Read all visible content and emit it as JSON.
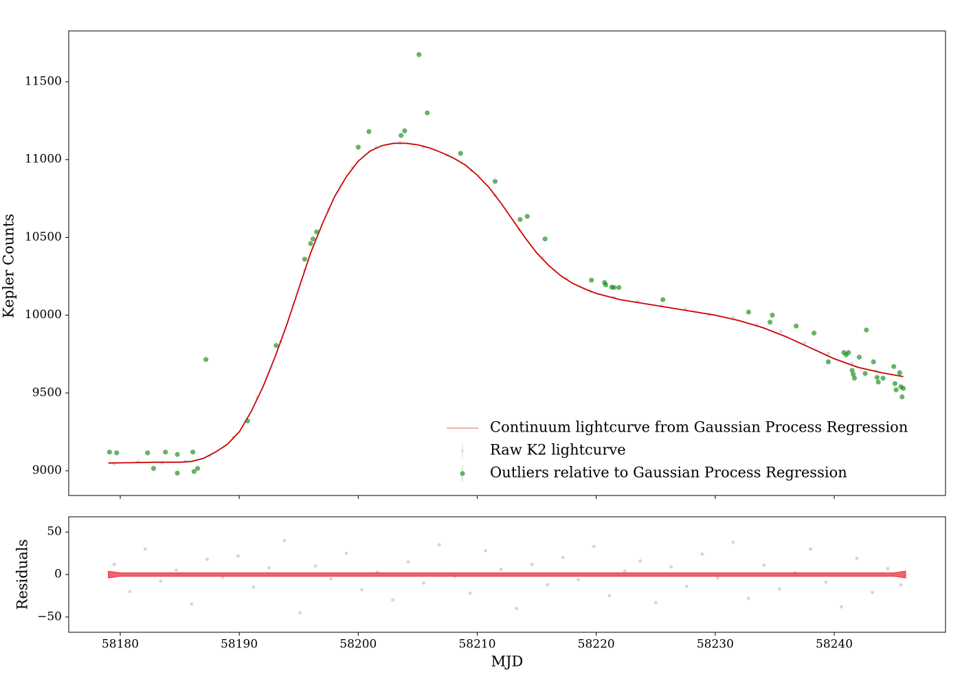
{
  "chart_data": [
    {
      "type": "composite",
      "ylabel": "Kepler Counts",
      "xlim": [
        58175.67,
        58249.35
      ],
      "ylim": [
        8841,
        11827
      ],
      "xticks": [
        58180,
        58190,
        58200,
        58210,
        58220,
        58230,
        58240
      ],
      "yticks": [
        9000,
        9500,
        10000,
        10500,
        11000,
        11500
      ],
      "legend": "lower right",
      "series": [
        {
          "name": "Continuum lightcurve from Gaussian Process Regression",
          "kind": "line",
          "color": "#cc0000",
          "x": [
            58179,
            58181,
            58183,
            58185,
            58186,
            58187,
            58188,
            58189,
            58190,
            58191,
            58192,
            58193,
            58194,
            58195,
            58196,
            58197,
            58198,
            58199,
            58200,
            58201,
            58202,
            58203,
            58204,
            58205,
            58206,
            58207,
            58208,
            58209,
            58210,
            58211,
            58212,
            58213,
            58214,
            58215,
            58216,
            58217,
            58218,
            58219,
            58220,
            58221,
            58222,
            58224,
            58226,
            58228,
            58230,
            58232,
            58234,
            58236,
            58238,
            58240,
            58242,
            58244,
            58245.8
          ],
          "values": [
            9050,
            9052,
            9055,
            9055,
            9060,
            9080,
            9120,
            9170,
            9250,
            9380,
            9540,
            9730,
            9940,
            10170,
            10400,
            10590,
            10760,
            10890,
            10990,
            11055,
            11090,
            11105,
            11105,
            11095,
            11075,
            11045,
            11010,
            10965,
            10900,
            10820,
            10720,
            10610,
            10500,
            10400,
            10320,
            10255,
            10205,
            10170,
            10140,
            10120,
            10100,
            10075,
            10050,
            10025,
            10000,
            9965,
            9920,
            9860,
            9790,
            9720,
            9665,
            9630,
            9605
          ]
        },
        {
          "name": "Raw K2 lightcurve",
          "kind": "points",
          "color": "#999999",
          "x": [
            58179.5,
            58181.5,
            58183.5,
            58185.5,
            58187.5,
            58189.5,
            58191.5,
            58193.5,
            58195.5,
            58197.5,
            58199.5,
            58201.5,
            58203.5,
            58205.5,
            58207.5,
            58209.5,
            58211.5,
            58213.5,
            58215.5,
            58217.5,
            58219.5,
            58221.5,
            58223.5,
            58225.5,
            58227.5,
            58229.5,
            58231.5,
            58233.5,
            58235.5,
            58237.5,
            58239.5,
            58241.5,
            58243.5,
            58245.5
          ],
          "values": [
            9045,
            9060,
            9050,
            9062,
            9095,
            9215,
            9470,
            9830,
            10290,
            10680,
            10950,
            11080,
            11110,
            11080,
            11030,
            10930,
            10770,
            10550,
            10370,
            10235,
            10150,
            10115,
            10090,
            10060,
            10040,
            10005,
            9985,
            9940,
            9895,
            9820,
            9755,
            9690,
            9640,
            9615
          ]
        },
        {
          "name": "Outliers relative to Gaussian Process Regression",
          "kind": "points",
          "color": "#008000",
          "x": [
            58179.1,
            58179.7,
            58182.3,
            58182.8,
            58183.8,
            58184.8,
            58184.8,
            58186.1,
            58186.2,
            58186.5,
            58187.2,
            58190.7,
            58193.1,
            58195.5,
            58196.0,
            58196.2,
            58196.5,
            58200.0,
            58200.9,
            58203.6,
            58203.9,
            58205.1,
            58205.8,
            58208.6,
            58211.5,
            58213.6,
            58214.2,
            58215.7,
            58219.6,
            58220.7,
            58220.8,
            58221.3,
            58221.5,
            58221.9,
            58225.6,
            58232.8,
            58234.6,
            58234.8,
            58236.8,
            58238.3,
            58239.5,
            58240.8,
            58241.2,
            58241.0,
            58241.5,
            58241.6,
            58241.7,
            58242.1,
            58242.6,
            58242.7,
            58243.3,
            58243.6,
            58243.7,
            58244.1,
            58245.0,
            58245.1,
            58245.2,
            58245.5,
            58245.6,
            58245.7,
            58245.8
          ],
          "values": [
            9120,
            9115,
            9115,
            9015,
            9120,
            8985,
            9105,
            9120,
            8995,
            9015,
            9715,
            9320,
            9805,
            10360,
            10460,
            10490,
            10535,
            11080,
            11180,
            11155,
            11185,
            11675,
            11300,
            11040,
            10860,
            10615,
            10635,
            10490,
            10225,
            10210,
            10195,
            10180,
            10178,
            10178,
            10100,
            10020,
            9955,
            10000,
            9930,
            9885,
            9700,
            9760,
            9760,
            9745,
            9645,
            9620,
            9595,
            9730,
            9625,
            9905,
            9700,
            9600,
            9570,
            9595,
            9670,
            9560,
            9520,
            9630,
            9540,
            9475,
            9530
          ]
        }
      ]
    },
    {
      "type": "scatter",
      "ylabel": "Residuals",
      "xlabel": "MJD",
      "xlim": [
        58175.67,
        58249.35
      ],
      "ylim": [
        -68,
        68
      ],
      "xticks": [
        58180,
        58190,
        58200,
        58210,
        58220,
        58230,
        58240
      ],
      "yticks": [
        {
          "value": -50,
          "label": "−50"
        },
        0,
        50
      ],
      "color": "#999999",
      "x": [
        58179.5,
        58180.8,
        58182.1,
        58183.4,
        58184.7,
        58186,
        58187.3,
        58188.6,
        58189.9,
        58191.2,
        58192.5,
        58193.8,
        58195.1,
        58196.4,
        58197.7,
        58199,
        58200.3,
        58201.6,
        58202.9,
        58204.2,
        58205.5,
        58206.8,
        58208.1,
        58209.4,
        58210.7,
        58212,
        58213.3,
        58214.6,
        58215.9,
        58217.2,
        58218.5,
        58219.8,
        58221.1,
        58222.4,
        58223.7,
        58225,
        58226.3,
        58227.6,
        58228.9,
        58230.2,
        58231.5,
        58232.8,
        58234.1,
        58235.4,
        58236.7,
        58238,
        58239.3,
        58240.6,
        58241.9,
        58243.2,
        58244.5,
        58245.6
      ],
      "values": [
        12,
        -20,
        30,
        -8,
        5,
        -35,
        18,
        -3,
        22,
        -15,
        8,
        40,
        -45,
        10,
        -5,
        25,
        -18,
        3,
        -30,
        15,
        -10,
        35,
        -2,
        -22,
        28,
        6,
        -40,
        12,
        -12,
        20,
        -6,
        33,
        -25,
        4,
        16,
        -33,
        9,
        -14,
        24,
        -4,
        38,
        -28,
        11,
        -17,
        2,
        30,
        -9,
        -38,
        19,
        -21,
        7,
        -12
      ],
      "band": {
        "color": "#e8303a",
        "x": [
          58179,
          58180,
          58245,
          58246
        ],
        "upper": [
          4,
          2,
          2,
          4
        ],
        "lower": [
          -4,
          -2,
          -2,
          -4
        ]
      }
    }
  ]
}
